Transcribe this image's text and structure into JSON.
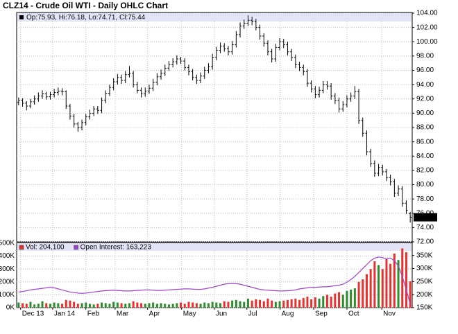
{
  "chart_data": [
    {
      "type": "ohlc",
      "title": "CLZ14 - Crude Oil WTI - Daily OHLC Chart",
      "legend_text": "Op:75.93, Hi:76.18, Lo:74.71, Cl:75.44",
      "color": "#000000",
      "grid": true,
      "xlim": [
        -0.5,
        99.5
      ],
      "ylim": [
        72,
        104
      ],
      "yticks": [
        {
          "value": 72,
          "label": "72.00"
        },
        {
          "value": 74,
          "label": "74.00"
        },
        {
          "value": 76,
          "label": "76.00"
        },
        {
          "value": 78,
          "label": "78.00"
        },
        {
          "value": 80,
          "label": "80.00"
        },
        {
          "value": 82,
          "label": "82.00"
        },
        {
          "value": 84,
          "label": "84.00"
        },
        {
          "value": 86,
          "label": "86.00"
        },
        {
          "value": 88,
          "label": "88.00"
        },
        {
          "value": 90,
          "label": "90.00"
        },
        {
          "value": 92,
          "label": "92.00"
        },
        {
          "value": 94,
          "label": "94.00"
        },
        {
          "value": 96,
          "label": "96.00"
        },
        {
          "value": 98,
          "label": "98.00"
        },
        {
          "value": 100,
          "label": "100.00"
        },
        {
          "value": 102,
          "label": "102.00"
        },
        {
          "value": 104,
          "label": "104.00"
        }
      ],
      "open": [
        91.5,
        91.8,
        91.4,
        91.0,
        91.6,
        92.0,
        92.4,
        92.7,
        92.3,
        92.6,
        92.9,
        93.1,
        93.0,
        91.0,
        89.6,
        88.5,
        88.0,
        88.7,
        89.5,
        90.0,
        90.6,
        90.4,
        91.8,
        92.8,
        93.6,
        94.4,
        95.0,
        94.6,
        95.4,
        95.6,
        94.0,
        93.2,
        92.7,
        93.1,
        93.5,
        94.3,
        95.1,
        95.6,
        96.3,
        96.8,
        97.2,
        97.6,
        97.3,
        96.4,
        95.8,
        95.0,
        94.6,
        95.2,
        96.0,
        96.5,
        97.8,
        98.8,
        99.4,
        99.0,
        98.6,
        99.6,
        101.0,
        102.2,
        102.6,
        103.0,
        102.8,
        102.0,
        100.8,
        99.8,
        98.6,
        97.6,
        99.2,
        100.0,
        99.6,
        98.6,
        97.8,
        96.8,
        96.4,
        95.8,
        94.2,
        93.4,
        92.6,
        93.2,
        94.0,
        93.8,
        92.4,
        91.8,
        90.6,
        91.2,
        92.0,
        92.4,
        93.0,
        89.0,
        87.2,
        84.6,
        83.0,
        81.6,
        82.4,
        81.8,
        81.0,
        80.4,
        78.8,
        79.4,
        77.4,
        75.93
      ],
      "high": [
        92.2,
        92.1,
        91.7,
        92.0,
        92.5,
        92.9,
        93.2,
        93.0,
        93.0,
        93.4,
        93.6,
        93.5,
        93.2,
        91.3,
        89.9,
        88.8,
        89.1,
        89.9,
        90.5,
        91.0,
        91.0,
        92.2,
        93.2,
        94.0,
        94.9,
        95.5,
        95.4,
        95.9,
        96.6,
        95.9,
        94.4,
        93.6,
        93.6,
        94.0,
        94.8,
        95.6,
        96.1,
        96.8,
        97.3,
        97.7,
        98.1,
        97.9,
        97.7,
        96.8,
        96.2,
        95.4,
        95.7,
        96.5,
        97.0,
        98.3,
        99.3,
        99.9,
        99.8,
        99.4,
        100.1,
        101.5,
        102.7,
        103.1,
        103.7,
        103.5,
        103.2,
        102.4,
        101.2,
        100.2,
        99.0,
        99.7,
        100.5,
        100.4,
        100.0,
        99.0,
        98.2,
        97.2,
        96.8,
        96.2,
        94.6,
        93.8,
        93.7,
        94.5,
        94.5,
        94.2,
        92.8,
        92.2,
        91.7,
        92.5,
        92.9,
        93.8,
        93.4,
        89.4,
        87.6,
        85.0,
        83.4,
        82.9,
        82.8,
        82.2,
        81.4,
        80.8,
        79.9,
        79.8,
        77.8,
        76.18
      ],
      "low": [
        91.1,
        90.9,
        90.4,
        90.7,
        91.2,
        91.6,
        92.0,
        91.9,
        91.9,
        92.2,
        92.5,
        92.5,
        90.6,
        89.1,
        88.0,
        87.4,
        87.6,
        88.3,
        89.1,
        89.6,
        89.9,
        90.0,
        91.4,
        92.4,
        93.2,
        94.0,
        94.1,
        94.2,
        95.0,
        93.6,
        92.8,
        92.2,
        92.3,
        92.7,
        93.1,
        93.9,
        94.7,
        95.2,
        95.9,
        96.4,
        96.8,
        96.9,
        96.0,
        95.3,
        94.6,
        94.1,
        94.2,
        94.8,
        95.6,
        96.1,
        97.4,
        98.4,
        98.6,
        98.1,
        98.2,
        99.2,
        100.6,
        101.8,
        102.2,
        102.3,
        101.6,
        100.3,
        99.3,
        98.1,
        97.1,
        97.2,
        98.8,
        99.1,
        98.1,
        97.3,
        96.3,
        95.9,
        95.3,
        93.7,
        92.9,
        92.1,
        92.2,
        92.8,
        93.3,
        91.9,
        91.3,
        90.1,
        90.2,
        90.8,
        91.6,
        92.0,
        88.5,
        86.7,
        84.1,
        82.5,
        81.1,
        81.2,
        81.3,
        80.5,
        79.9,
        78.3,
        78.4,
        76.9,
        75.9,
        74.71
      ],
      "close": [
        91.8,
        91.4,
        91.0,
        91.6,
        92.0,
        92.4,
        92.7,
        92.3,
        92.6,
        92.9,
        93.1,
        93.0,
        91.0,
        89.6,
        88.5,
        88.0,
        88.7,
        89.5,
        90.0,
        90.6,
        90.4,
        91.8,
        92.8,
        93.6,
        94.4,
        95.0,
        94.6,
        95.4,
        95.6,
        94.0,
        93.2,
        92.7,
        93.1,
        93.5,
        94.3,
        95.1,
        95.6,
        96.3,
        96.8,
        97.2,
        97.6,
        97.3,
        96.4,
        95.8,
        95.0,
        94.6,
        95.2,
        96.0,
        96.5,
        97.8,
        98.8,
        99.4,
        99.0,
        98.6,
        99.6,
        101.0,
        102.2,
        102.6,
        103.0,
        102.8,
        102.0,
        100.8,
        99.8,
        98.6,
        97.6,
        99.2,
        100.0,
        99.6,
        98.6,
        97.8,
        96.8,
        96.4,
        95.8,
        94.2,
        93.4,
        92.6,
        93.2,
        94.0,
        93.8,
        92.4,
        91.8,
        90.6,
        91.2,
        92.0,
        92.4,
        93.0,
        89.0,
        87.2,
        84.6,
        83.0,
        81.6,
        82.4,
        81.8,
        81.0,
        80.4,
        78.8,
        79.4,
        77.4,
        76.4,
        75.44
      ]
    },
    {
      "type": "volume",
      "grid": true,
      "xlim": [
        -0.5,
        99.5
      ],
      "ylim": [
        0,
        500000
      ],
      "y2lim": [
        150000,
        397000
      ],
      "up_color": "#2e8b2e",
      "xticks": [
        {
          "value": 0.5,
          "label": "Dec 13"
        },
        {
          "value": 8.6,
          "label": "Jan 14"
        },
        {
          "value": 17.0,
          "label": "Feb"
        },
        {
          "value": 24.4,
          "label": "Mar"
        },
        {
          "value": 32.6,
          "label": "Apr"
        },
        {
          "value": 41.2,
          "label": "May"
        },
        {
          "value": 49.5,
          "label": "Jun"
        },
        {
          "value": 57.7,
          "label": "Jul"
        },
        {
          "value": 66.1,
          "label": "Aug"
        },
        {
          "value": 74.6,
          "label": "Sep"
        },
        {
          "value": 83.0,
          "label": "Oct"
        },
        {
          "value": 91.8,
          "label": "Nov"
        }
      ],
      "yticks": [
        {
          "value": 0,
          "label": "0K"
        },
        {
          "value": 100000,
          "label": "100K"
        },
        {
          "value": 200000,
          "label": "200K"
        },
        {
          "value": 300000,
          "label": "300K"
        },
        {
          "value": 400000,
          "label": "400K"
        },
        {
          "value": 500000,
          "label": "500K"
        }
      ],
      "y2ticks": [
        {
          "value": 150000,
          "label": "150K"
        },
        {
          "value": 200000,
          "label": "200K"
        },
        {
          "value": 250000,
          "label": "250K"
        },
        {
          "value": 300000,
          "label": "300K"
        },
        {
          "value": 350000,
          "label": "350K"
        }
      ],
      "series": [
        {
          "name": "Vol: 204,100",
          "color": "#e8302f",
          "values": [
            40000,
            35000,
            30000,
            45000,
            25000,
            30000,
            50000,
            35000,
            30000,
            40000,
            35000,
            30000,
            60000,
            55000,
            45000,
            30000,
            35000,
            40000,
            30000,
            25000,
            30000,
            40000,
            35000,
            30000,
            45000,
            40000,
            35000,
            30000,
            35000,
            50000,
            40000,
            35000,
            30000,
            35000,
            40000,
            30000,
            35000,
            30000,
            25000,
            30000,
            35000,
            40000,
            30000,
            45000,
            40000,
            35000,
            30000,
            40000,
            35000,
            45000,
            40000,
            35000,
            50000,
            45000,
            55000,
            60000,
            50000,
            45000,
            70000,
            55000,
            65000,
            60000,
            50000,
            70000,
            55000,
            45000,
            50000,
            55000,
            60000,
            65000,
            70000,
            60000,
            75000,
            85000,
            65000,
            80000,
            70000,
            90000,
            100000,
            85000,
            110000,
            120000,
            100000,
            130000,
            140000,
            150000,
            200000,
            220000,
            260000,
            300000,
            360000,
            330000,
            300000,
            380000,
            340000,
            420000,
            370000,
            460000,
            430000,
            204100
          ]
        },
        {
          "name": "Open Interest: 163,223",
          "color": "#a040d0",
          "axis": "y2",
          "values": [
            210000,
            212000,
            215000,
            218000,
            220000,
            222000,
            224000,
            226000,
            228000,
            226000,
            222000,
            218000,
            214000,
            210000,
            208000,
            206000,
            205000,
            206000,
            208000,
            210000,
            212000,
            214000,
            215000,
            216000,
            217000,
            216000,
            215000,
            214000,
            214000,
            215000,
            216000,
            217000,
            218000,
            218000,
            217000,
            216000,
            216000,
            217000,
            218000,
            219000,
            220000,
            221000,
            222000,
            222000,
            221000,
            220000,
            220000,
            222000,
            225000,
            228000,
            232000,
            236000,
            240000,
            242000,
            243000,
            242000,
            240000,
            236000,
            232000,
            228000,
            224000,
            220000,
            218000,
            217000,
            216000,
            215000,
            214000,
            214000,
            215000,
            216000,
            218000,
            222000,
            224000,
            226000,
            228000,
            228000,
            229000,
            230000,
            230000,
            232000,
            234000,
            236000,
            240000,
            248000,
            258000,
            270000,
            285000,
            300000,
            315000,
            330000,
            340000,
            344000,
            342000,
            336000,
            340000,
            330000,
            310000,
            270000,
            220000,
            163223
          ]
        }
      ]
    }
  ]
}
